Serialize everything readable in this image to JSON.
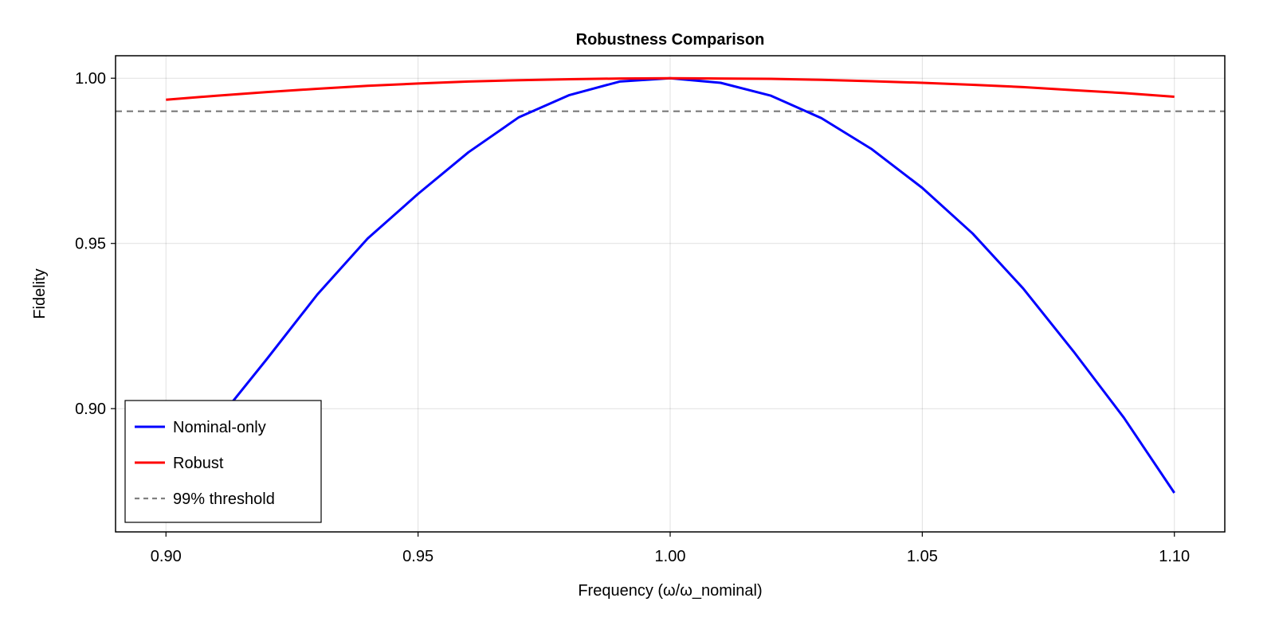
{
  "chart_data": {
    "type": "line",
    "title": "Robustness Comparison",
    "xlabel": "Frequency (ω/ω_nominal)",
    "ylabel": "Fidelity",
    "xlim": [
      0.89,
      1.11
    ],
    "ylim": [
      0.8627,
      1.0068
    ],
    "grid": true,
    "legend_position": "bottom-left",
    "xticks": [
      "0.90",
      "0.95",
      "1.00",
      "1.05",
      "1.10"
    ],
    "xtick_values": [
      0.9,
      0.95,
      1.0,
      1.05,
      1.1
    ],
    "yticks": [
      "0.90",
      "0.95",
      "1.00"
    ],
    "ytick_values": [
      0.9,
      0.95,
      1.0
    ],
    "x": [
      0.9,
      0.91,
      0.92,
      0.93,
      0.94,
      0.95,
      0.96,
      0.97,
      0.98,
      0.99,
      1.0,
      1.01,
      1.02,
      1.03,
      1.04,
      1.05,
      1.06,
      1.07,
      1.08,
      1.09,
      1.1
    ],
    "series": [
      {
        "name": "Nominal-only",
        "color": "#0000ff",
        "style": "solid",
        "values": [
          0.873,
          0.896,
          0.915,
          0.9345,
          0.9515,
          0.965,
          0.9776,
          0.9882,
          0.9949,
          0.999,
          1.0,
          0.9986,
          0.9947,
          0.9879,
          0.9785,
          0.9668,
          0.953,
          0.9364,
          0.9173,
          0.8972,
          0.8745
        ]
      },
      {
        "name": "Robust",
        "color": "#ff0000",
        "style": "solid",
        "values": [
          0.9935,
          0.9947,
          0.9958,
          0.9968,
          0.9977,
          0.9984,
          0.999,
          0.9994,
          0.9997,
          0.9999,
          1.0,
          0.9999,
          0.9998,
          0.9995,
          0.9991,
          0.9986,
          0.998,
          0.9973,
          0.9964,
          0.9955,
          0.9944
        ]
      }
    ],
    "hlines": [
      {
        "name": "99% threshold",
        "y": 0.99,
        "color": "#808080",
        "style": "dashed"
      }
    ]
  }
}
